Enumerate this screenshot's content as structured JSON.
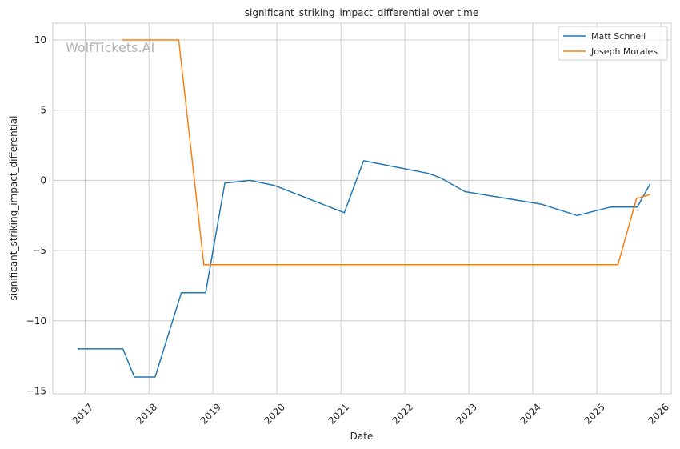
{
  "watermark": "WolfTickets.AI",
  "chart_data": {
    "type": "line",
    "title": "significant_striking_impact_differential over time",
    "xlabel": "Date",
    "ylabel": "significant_striking_impact_differential",
    "xlim": [
      "2016-07-01",
      "2026-03-01"
    ],
    "ylim": [
      -15.2,
      11.2
    ],
    "x_ticks": [
      "2017",
      "2018",
      "2019",
      "2020",
      "2021",
      "2022",
      "2023",
      "2024",
      "2025",
      "2026"
    ],
    "y_ticks": [
      10,
      5,
      0,
      -5,
      -10,
      -15
    ],
    "y_tick_labels": [
      "10",
      "5",
      "0",
      "−5",
      "−10",
      "−15"
    ],
    "grid": true,
    "legend_position": "top-right",
    "series": [
      {
        "name": "Matt Schnell",
        "color": "#1f77b4",
        "points": [
          [
            "2016-11-20",
            -12
          ],
          [
            "2017-08-05",
            -12
          ],
          [
            "2017-10-10",
            -14
          ],
          [
            "2018-02-05",
            -14
          ],
          [
            "2018-07-05",
            -8
          ],
          [
            "2018-11-20",
            -8
          ],
          [
            "2019-03-10",
            -0.2
          ],
          [
            "2019-08-01",
            0
          ],
          [
            "2019-12-15",
            -0.35
          ],
          [
            "2021-01-20",
            -2.3
          ],
          [
            "2021-05-10",
            1.4
          ],
          [
            "2022-05-15",
            0.5
          ],
          [
            "2022-07-20",
            0.2
          ],
          [
            "2022-12-10",
            -0.8
          ],
          [
            "2024-02-20",
            -1.7
          ],
          [
            "2024-09-10",
            -2.5
          ],
          [
            "2025-03-20",
            -1.9
          ],
          [
            "2025-08-20",
            -1.9
          ],
          [
            "2025-11-01",
            -0.25
          ]
        ]
      },
      {
        "name": "Joseph Morales",
        "color": "#ff7f0e",
        "points": [
          [
            "2017-08-01",
            10
          ],
          [
            "2018-06-20",
            10
          ],
          [
            "2018-11-10",
            -6
          ],
          [
            "2025-05-01",
            -6
          ],
          [
            "2025-08-15",
            -1.3
          ],
          [
            "2025-11-01",
            -1
          ]
        ]
      }
    ]
  }
}
